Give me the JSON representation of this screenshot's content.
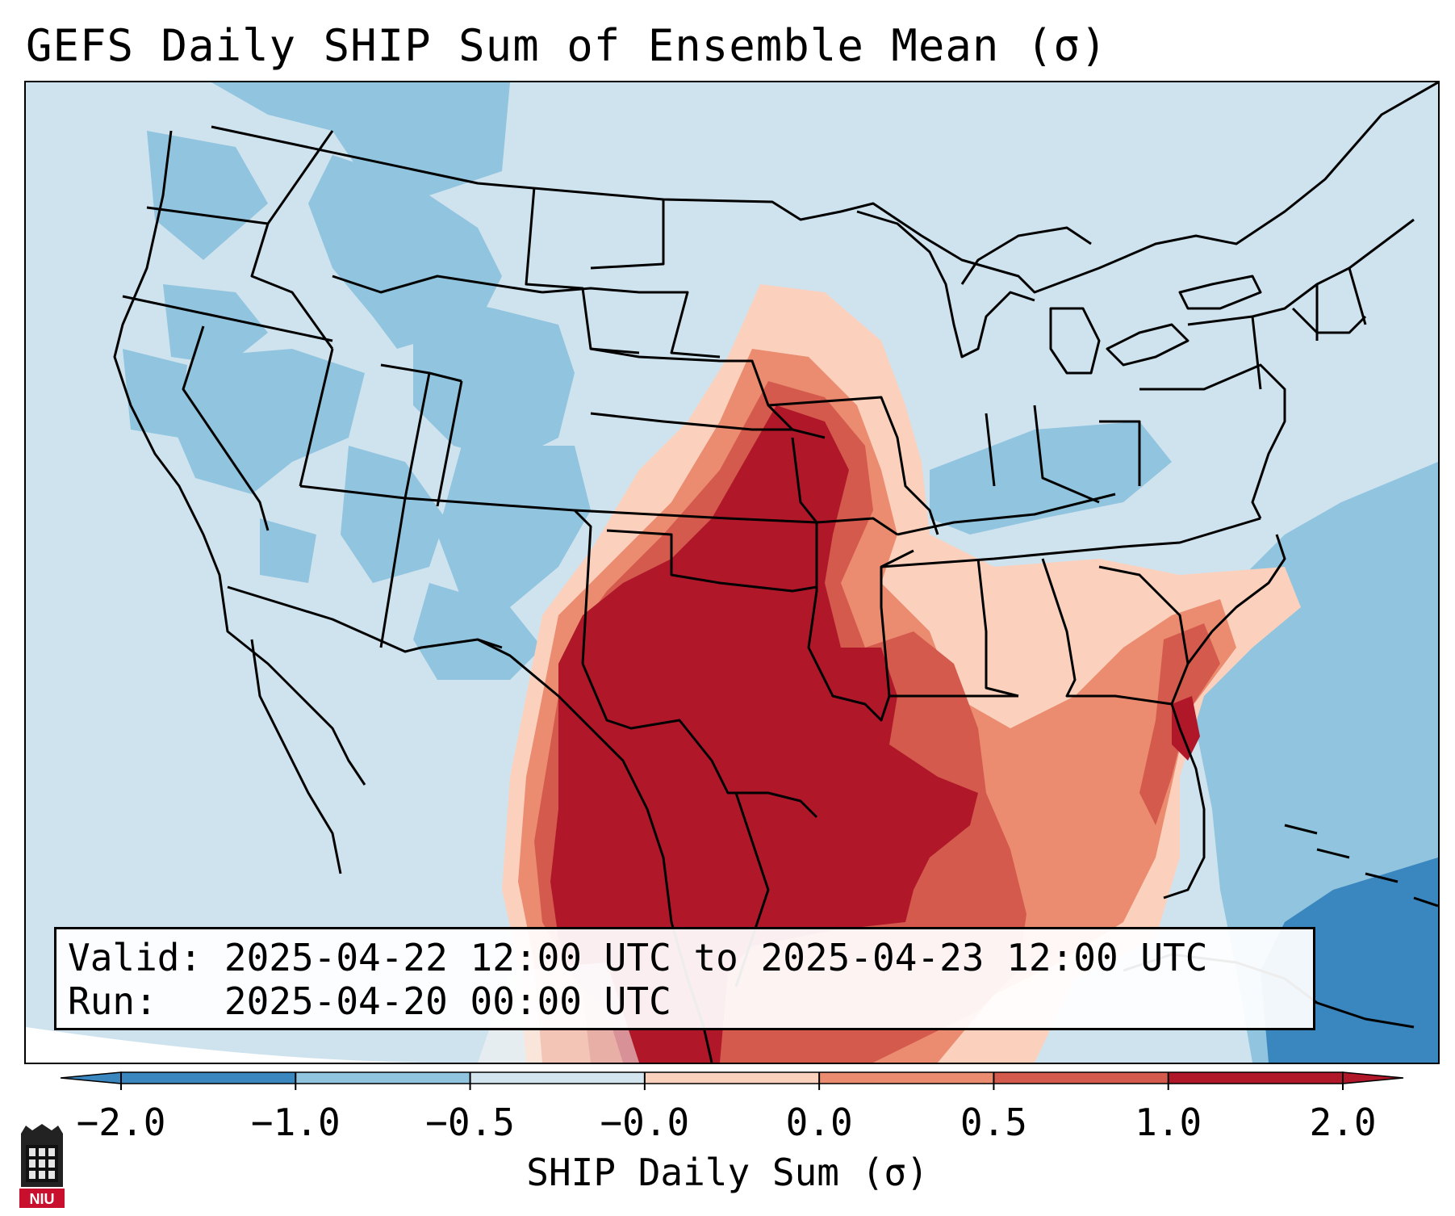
{
  "title": "GEFS Daily SHIP Sum of Ensemble Mean (σ)",
  "info": {
    "valid_label": "Valid:",
    "valid_value": "2025-04-22 12:00 UTC to 2025-04-23 12:00 UTC",
    "run_label": "Run:",
    "run_value": "2025-04-20 00:00 UTC"
  },
  "colorbar": {
    "label": "SHIP Daily Sum (σ)",
    "ticks": [
      "−2.0",
      "−1.0",
      "−0.5",
      "−0.0",
      "0.0",
      "0.5",
      "1.0",
      "2.0"
    ],
    "colors": [
      "#3a87c0",
      "#91c4de",
      "#d3e6f0",
      "#f8f5f1",
      "#fbd1bd",
      "#eb8b6f",
      "#d45a4d",
      "#b0182a"
    ],
    "extend": "both"
  },
  "map": {
    "projection": "Lambert Conformal (CONUS)",
    "field_colors": {
      "very_low": "#3a87c0",
      "low": "#91c4de",
      "slightly_low": "#cfe3ef",
      "near_zero": "#f8f5f1",
      "slightly_high": "#fbd1bd",
      "high": "#eb8b6f",
      "very_high": "#d45a4d",
      "extreme": "#b0182a"
    },
    "maximum_region": "Southern Plains (Texas, Oklahoma, Kansas, Arkansas, Louisiana)"
  },
  "logo": {
    "text": "NIU",
    "color": "#c8102e"
  }
}
